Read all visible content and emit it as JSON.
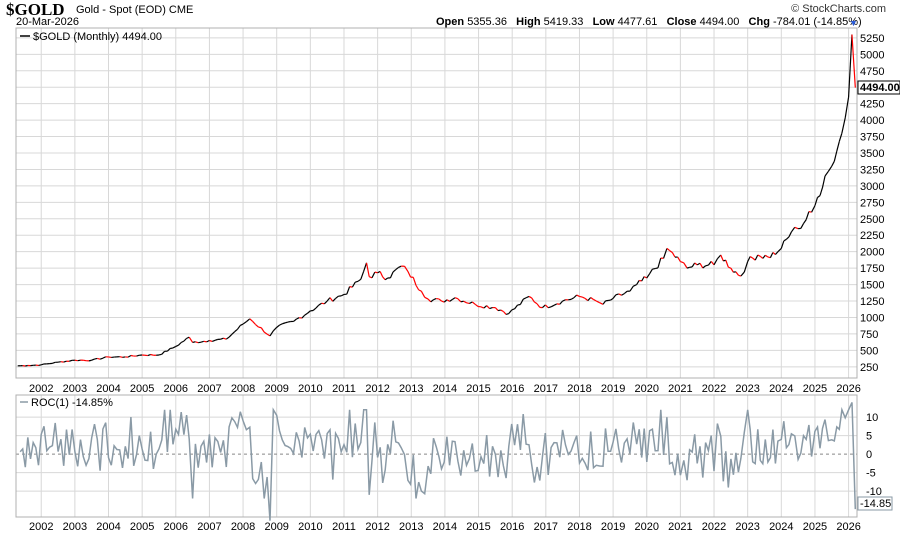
{
  "header": {
    "symbol": "$GOLD",
    "name": "Gold - Spot (EOD)",
    "exchange": "CME",
    "date": "20-Mar-2026",
    "brand": "© StockCharts.com",
    "open_label": "Open",
    "open": "5355.36",
    "high_label": "High",
    "high": "5419.33",
    "low_label": "Low",
    "low": "4477.61",
    "close_label": "Close",
    "close": "4494.00",
    "chg_label": "Chg",
    "chg": "-784.01 (-14.85%)"
  },
  "colors": {
    "up": "#000000",
    "down": "#ff0000",
    "roc": "#8a9aa6",
    "grid": "#d8d8d8",
    "frame": "#b0b0b0"
  },
  "chart_data": [
    {
      "type": "line",
      "legend": "$GOLD (Monthly) 4494.00",
      "last_value_label": "4494.00",
      "x_ticks": [
        "2002",
        "2003",
        "2004",
        "2005",
        "2006",
        "2007",
        "2008",
        "2009",
        "2010",
        "2011",
        "2012",
        "2013",
        "2014",
        "2015",
        "2016",
        "2017",
        "2018",
        "2019",
        "2020",
        "2021",
        "2022",
        "2023",
        "2024",
        "2025",
        "2026"
      ],
      "y_ticks": [
        250,
        500,
        750,
        1000,
        1250,
        1500,
        1750,
        2000,
        2250,
        2500,
        2750,
        3000,
        3250,
        3500,
        3750,
        4000,
        4250,
        4500,
        4750,
        5000,
        5250
      ],
      "ylim": [
        80,
        5400
      ],
      "grid": true,
      "series": [
        {
          "name": "$GOLD",
          "x": [
            2001.3,
            2001.6,
            2002.0,
            2002.5,
            2003.0,
            2003.5,
            2004.0,
            2004.5,
            2005.0,
            2005.5,
            2006.0,
            2006.4,
            2006.5,
            2007.0,
            2007.5,
            2008.0,
            2008.2,
            2008.8,
            2009.0,
            2009.5,
            2010.0,
            2010.5,
            2011.0,
            2011.5,
            2011.67,
            2011.75,
            2012.0,
            2012.3,
            2012.7,
            2012.9,
            2013.3,
            2013.5,
            2013.9,
            2014.3,
            2014.9,
            2015.5,
            2015.9,
            2016.5,
            2016.9,
            2017.5,
            2018.0,
            2018.5,
            2018.7,
            2019.0,
            2019.5,
            2019.7,
            2020.0,
            2020.5,
            2020.6,
            2021.0,
            2021.2,
            2021.5,
            2022.0,
            2022.2,
            2022.5,
            2022.8,
            2023.0,
            2023.3,
            2023.6,
            2023.9,
            2024.0,
            2024.3,
            2024.5,
            2024.9,
            2025.0,
            2025.3,
            2025.5,
            2025.8,
            2026.0,
            2026.1,
            2026.2
          ],
          "y": [
            265,
            270,
            280,
            320,
            350,
            350,
            400,
            400,
            430,
            430,
            560,
            700,
            620,
            650,
            670,
            900,
            980,
            720,
            850,
            940,
            1100,
            1250,
            1350,
            1580,
            1830,
            1620,
            1680,
            1600,
            1780,
            1700,
            1400,
            1280,
            1250,
            1300,
            1200,
            1150,
            1060,
            1320,
            1150,
            1250,
            1320,
            1250,
            1200,
            1290,
            1400,
            1500,
            1600,
            1900,
            2050,
            1850,
            1750,
            1800,
            1800,
            1950,
            1750,
            1630,
            1850,
            1950,
            1920,
            2000,
            2050,
            2300,
            2350,
            2600,
            2700,
            3150,
            3300,
            3800,
            4350,
            5300,
            4494
          ]
        }
      ]
    },
    {
      "type": "line",
      "legend": "ROC(1) -14.85%",
      "last_value_label": "-14.85",
      "x_ticks": [
        "2002",
        "2003",
        "2004",
        "2005",
        "2006",
        "2007",
        "2008",
        "2009",
        "2010",
        "2011",
        "2012",
        "2013",
        "2014",
        "2015",
        "2016",
        "2017",
        "2018",
        "2019",
        "2020",
        "2021",
        "2022",
        "2023",
        "2024",
        "2025",
        "2026"
      ],
      "y_ticks": [
        -10,
        -5,
        0,
        5,
        10
      ],
      "ylim": [
        -17,
        16
      ],
      "zero_line": true,
      "series": [
        {
          "name": "ROC(1)",
          "amplitude": 6,
          "last": -14.85,
          "spikes": [
            [
              2008.8,
              -18
            ],
            [
              2011.75,
              -11
            ],
            [
              2013.3,
              -10
            ],
            [
              2008.0,
              9
            ],
            [
              2011.67,
              12
            ],
            [
              2020.6,
              10
            ],
            [
              2025.8,
              12
            ],
            [
              2026.1,
              14
            ],
            [
              2026.2,
              -14.85
            ]
          ]
        }
      ]
    }
  ]
}
